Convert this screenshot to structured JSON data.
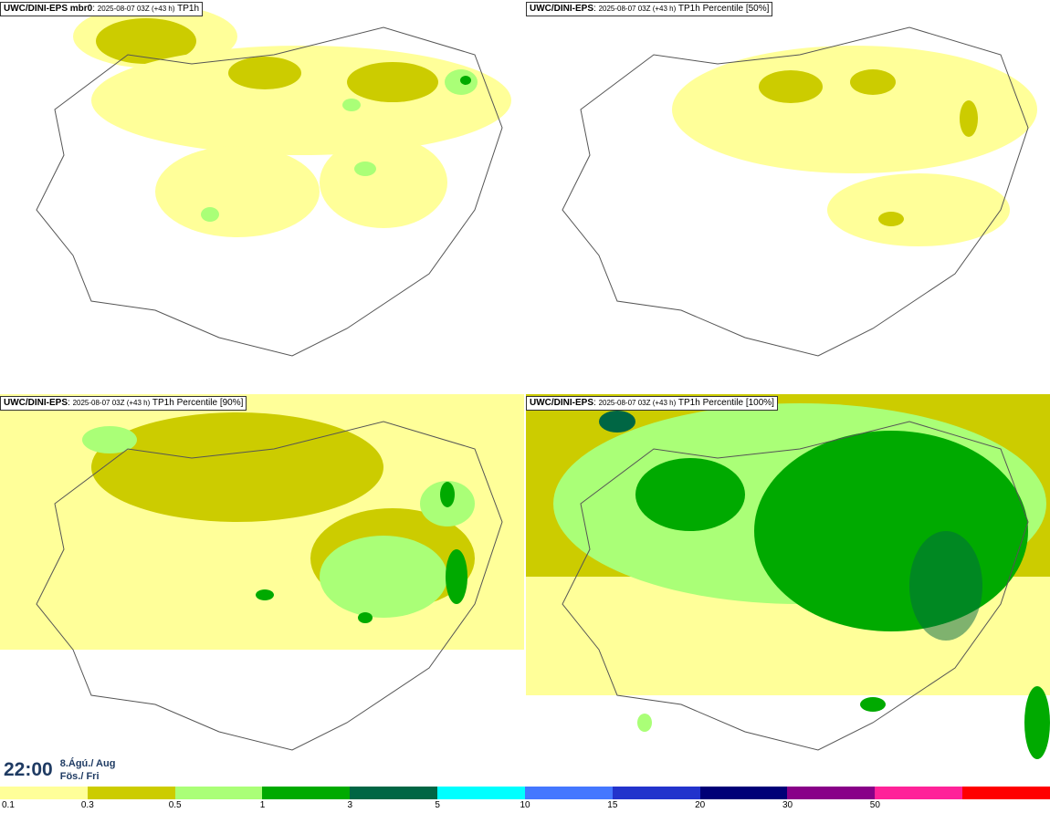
{
  "panels": [
    {
      "model": "UWC/DINI-EPS",
      "member": "mbr0",
      "run": "2025-08-07 03Z (+43 h)",
      "product": "TP1h"
    },
    {
      "model": "UWC/DINI-EPS",
      "member": "",
      "run": "2025-08-07 03Z (+43 h)",
      "product": "TP1h Percentile [50%]"
    },
    {
      "model": "UWC/DINI-EPS",
      "member": "",
      "run": "2025-08-07 03Z (+43 h)",
      "product": "TP1h Percentile [90%]"
    },
    {
      "model": "UWC/DINI-EPS",
      "member": "",
      "run": "2025-08-07 03Z (+43 h)",
      "product": "TP1h Percentile [100%]"
    }
  ],
  "valid_time": {
    "time": "22:00",
    "date_line1": "8.Ágú./ Aug",
    "date_line2": "Fös./ Fri"
  },
  "legend": {
    "colors": [
      "#ffff99",
      "#cccc00",
      "#aaff77",
      "#00aa00",
      "#006644",
      "#00ffff",
      "#4477ff",
      "#2233cc",
      "#000077",
      "#880088",
      "#ff2299",
      "#ff0000"
    ],
    "ticks": [
      "0.1",
      "0.3",
      "0.5",
      "1",
      "3",
      "5",
      "10",
      "15",
      "20",
      "30",
      "50"
    ]
  },
  "chart_data": {
    "type": "heatmap",
    "variable": "TP1h",
    "levels": [
      0.1,
      0.3,
      0.5,
      1,
      3,
      5,
      10,
      15,
      20,
      30,
      50
    ],
    "panels": [
      "mbr0",
      "Percentile [50%]",
      "Percentile [90%]",
      "Percentile [100%]"
    ]
  }
}
